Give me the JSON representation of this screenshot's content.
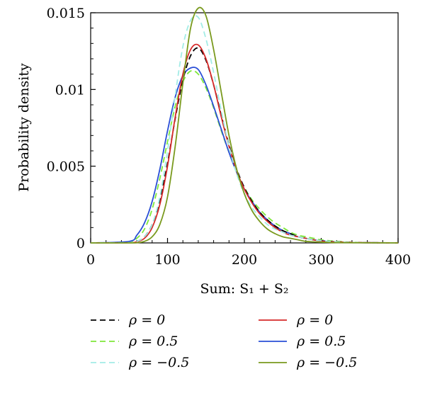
{
  "chart_data": {
    "type": "line",
    "title": "",
    "xlabel": "Sum: S₁ + S₂",
    "ylabel": "Probability density",
    "xlim": [
      0,
      400
    ],
    "ylim": [
      0,
      0.015
    ],
    "x_ticks": [
      0,
      100,
      200,
      300,
      400
    ],
    "x_tick_labels": [
      "0",
      "100",
      "200",
      "300",
      "400"
    ],
    "y_ticks": [
      0,
      0.005,
      0.01,
      0.015
    ],
    "y_tick_labels": [
      "0",
      "0.005",
      "0.01",
      "0.015"
    ],
    "grid": false,
    "legend_position": "bottom",
    "series": [
      {
        "name": "ρ = 0",
        "color": "#000000",
        "style": "dashed",
        "x": [
          0,
          50,
          60,
          70,
          80,
          90,
          100,
          110,
          120,
          130,
          140,
          150,
          160,
          170,
          180,
          190,
          200,
          210,
          220,
          230,
          240,
          250,
          260,
          270,
          280,
          290,
          300,
          320,
          350,
          400
        ],
        "y": [
          0,
          2e-05,
          0.0001,
          0.0004,
          0.0012,
          0.0028,
          0.0052,
          0.0081,
          0.0106,
          0.0122,
          0.0127,
          0.0119,
          0.0103,
          0.0083,
          0.0064,
          0.0048,
          0.0036,
          0.0027,
          0.002,
          0.0015,
          0.0011,
          0.0008,
          0.0006,
          0.0004,
          0.0003,
          0.0002,
          0.00015,
          7e-05,
          2e-05,
          0
        ]
      },
      {
        "name": "ρ = 0.5",
        "color": "#7ee83a",
        "style": "dashed",
        "x": [
          0,
          50,
          60,
          70,
          80,
          90,
          100,
          110,
          120,
          130,
          140,
          150,
          160,
          170,
          180,
          190,
          200,
          210,
          220,
          230,
          240,
          250,
          260,
          270,
          280,
          290,
          300,
          320,
          350,
          400
        ],
        "y": [
          0,
          5e-05,
          0.0003,
          0.0009,
          0.0022,
          0.0042,
          0.0066,
          0.0089,
          0.0105,
          0.0112,
          0.011,
          0.0101,
          0.0088,
          0.0073,
          0.0059,
          0.0046,
          0.0036,
          0.0028,
          0.0022,
          0.0017,
          0.0013,
          0.001,
          0.0007,
          0.0005,
          0.0004,
          0.0003,
          0.0002,
          0.0001,
          3e-05,
          0
        ]
      },
      {
        "name": "ρ = −0.5",
        "color": "#a3ece6",
        "style": "dashed",
        "x": [
          0,
          50,
          60,
          70,
          80,
          90,
          100,
          110,
          120,
          130,
          140,
          150,
          160,
          170,
          180,
          190,
          200,
          210,
          220,
          230,
          240,
          250,
          260,
          270,
          280,
          290,
          300,
          320,
          350,
          400
        ],
        "y": [
          0,
          2e-05,
          0.0001,
          0.0004,
          0.0012,
          0.003,
          0.006,
          0.0096,
          0.0128,
          0.0145,
          0.0147,
          0.0133,
          0.0111,
          0.0086,
          0.0063,
          0.0045,
          0.0032,
          0.0023,
          0.0017,
          0.0012,
          0.0009,
          0.0007,
          0.0005,
          0.0004,
          0.0003,
          0.0002,
          0.00015,
          7e-05,
          2e-05,
          0
        ]
      },
      {
        "name": "ρ = 0",
        "color": "#d62a2a",
        "style": "solid",
        "x": [
          0,
          50,
          60,
          70,
          80,
          90,
          100,
          110,
          120,
          130,
          140,
          150,
          160,
          170,
          180,
          190,
          200,
          210,
          220,
          230,
          240,
          250,
          260,
          270,
          280,
          290,
          300,
          320,
          350,
          400
        ],
        "y": [
          0,
          1e-05,
          8e-05,
          0.0003,
          0.001,
          0.0025,
          0.005,
          0.0082,
          0.011,
          0.0126,
          0.0129,
          0.012,
          0.0103,
          0.0082,
          0.0063,
          0.0047,
          0.0035,
          0.0026,
          0.0019,
          0.0014,
          0.001,
          0.0007,
          0.0005,
          0.0004,
          0.0003,
          0.0002,
          0.00012,
          6e-05,
          2e-05,
          0
        ]
      },
      {
        "name": "ρ = 0.5",
        "color": "#2a4fd6",
        "style": "solid",
        "x": [
          0,
          50,
          60,
          70,
          80,
          90,
          100,
          110,
          120,
          130,
          140,
          150,
          160,
          170,
          180,
          190,
          200,
          210,
          220,
          230,
          240,
          250,
          260,
          270,
          280,
          290,
          300,
          320,
          350,
          400
        ],
        "y": [
          0,
          0.0001,
          0.0005,
          0.0013,
          0.0027,
          0.0048,
          0.0073,
          0.0095,
          0.0109,
          0.0114,
          0.0113,
          0.0103,
          0.0089,
          0.0074,
          0.0059,
          0.0046,
          0.0035,
          0.0027,
          0.002,
          0.0015,
          0.0011,
          0.0008,
          0.0006,
          0.0004,
          0.0003,
          0.0002,
          0.00015,
          7e-05,
          2e-05,
          0
        ]
      },
      {
        "name": "ρ = −0.5",
        "color": "#7a9a1e",
        "style": "solid",
        "x": [
          0,
          50,
          60,
          70,
          80,
          90,
          100,
          110,
          120,
          130,
          140,
          150,
          160,
          170,
          180,
          190,
          200,
          210,
          220,
          230,
          240,
          250,
          260,
          270,
          280,
          290,
          300,
          320,
          350,
          400
        ],
        "y": [
          0,
          0,
          1e-05,
          0.0001,
          0.0004,
          0.0012,
          0.003,
          0.0063,
          0.0104,
          0.014,
          0.0153,
          0.0148,
          0.0126,
          0.0098,
          0.007,
          0.0048,
          0.0032,
          0.0021,
          0.0014,
          0.0009,
          0.0006,
          0.0004,
          0.0003,
          0.0002,
          0.0001,
          7e-05,
          5e-05,
          2e-05,
          1e-05,
          0
        ]
      }
    ]
  }
}
